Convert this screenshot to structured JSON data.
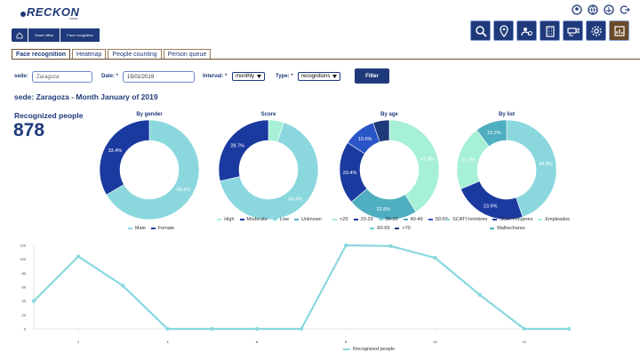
{
  "app": {
    "logo_text": "RECKON",
    "logo_sub": "PRIME"
  },
  "breadcrumb": [
    "Smart office",
    "Face recognition"
  ],
  "top_icons": [
    "profile-icon",
    "globe-icon",
    "scale-icon",
    "logout-icon"
  ],
  "nav_tiles": [
    "search-icon",
    "location-icon",
    "people-gear-icon",
    "building-icon",
    "camera-icon",
    "settings-icon",
    "dashboard-icon"
  ],
  "tabs": [
    {
      "label": "Face recognition",
      "active": true
    },
    {
      "label": "Heatmap",
      "active": false
    },
    {
      "label": "People counting",
      "active": false
    },
    {
      "label": "Person queue",
      "active": false
    }
  ],
  "filters": {
    "sede_label": "sede:",
    "sede_placeholder": "Zaragoza",
    "date_label": "Date: *",
    "date_value": "15/01/2019",
    "interval_label": "Interval: *",
    "interval_value": "monthly",
    "type_label": "Type: *",
    "type_value": "recognitions",
    "filter_button": "Filter"
  },
  "heading": "sede: Zaragoza - Month January of 2019",
  "recognized": {
    "label": "Recognized people",
    "count": "878"
  },
  "colors": {
    "dark": "#1a3aa0",
    "light": "#8ad8de",
    "mint": "#a6f0d6",
    "mid": "#4faec0",
    "navy": "#1f3a7a"
  },
  "chart_data": [
    {
      "type": "pie",
      "title": "By gender",
      "slices": [
        {
          "name": "Male",
          "value": 66.6,
          "label": "66.6%",
          "color": "#8ad8de"
        },
        {
          "name": "Female",
          "value": 33.4,
          "label": "33.4%",
          "color": "#1a3aa0"
        }
      ]
    },
    {
      "type": "pie",
      "title": "Score",
      "slices": [
        {
          "name": "High",
          "value": 5.0,
          "label": "",
          "color": "#a6f0d6"
        },
        {
          "name": "Moderate",
          "value": 66.4,
          "label": "66.4%",
          "color": "#8ad8de"
        },
        {
          "name": "Low",
          "value": 28.7,
          "label": "28.7%",
          "color": "#1a3aa0"
        }
      ],
      "legend": [
        {
          "name": "High",
          "color": "#a6f0d6"
        },
        {
          "name": "Moderate",
          "color": "#1a3aa0"
        },
        {
          "name": "Low",
          "color": "#8ad8de"
        },
        {
          "name": "Unknown",
          "color": "#4faec0"
        }
      ]
    },
    {
      "type": "pie",
      "title": "By age",
      "slices": [
        {
          "name": "<20",
          "value": 41.0,
          "label": "41.0%",
          "color": "#a6f0d6"
        },
        {
          "name": "20-29",
          "value": 22.8,
          "label": "22.8%",
          "color": "#4faec0"
        },
        {
          "name": "30-39",
          "value": 20.4,
          "label": "20.4%",
          "color": "#1a3aa0"
        },
        {
          "name": "40-49",
          "value": 10.5,
          "label": "10.5%",
          "color": "#2a55c8"
        },
        {
          "name": "50-59",
          "value": 5.3,
          "label": "",
          "color": "#1f3a7a"
        }
      ],
      "legend": [
        {
          "name": "<20",
          "color": "#a6f0d6"
        },
        {
          "name": "20-29",
          "color": "#1a3aa0"
        },
        {
          "name": "30-39",
          "color": "#8ad8de"
        },
        {
          "name": "40-49",
          "color": "#4faec0"
        },
        {
          "name": "50-59",
          "color": "#2a55c8"
        },
        {
          "name": "60-69",
          "color": "#6ad0c4"
        },
        {
          "name": ">70",
          "color": "#1f3a7a"
        }
      ]
    },
    {
      "type": "pie",
      "title": "By list",
      "slices": [
        {
          "name": "SCATI-hombres",
          "value": 44.8,
          "label": "44.8%",
          "color": "#8ad8de"
        },
        {
          "name": "SCATI-mujeres",
          "value": 23.9,
          "label": "23.9%",
          "color": "#1a3aa0"
        },
        {
          "name": "Empleados",
          "value": 21.0,
          "label": "21.0%",
          "color": "#a6f0d6"
        },
        {
          "name": "Malhechores",
          "value": 10.3,
          "label": "10.3%",
          "color": "#4faec0"
        }
      ],
      "legend": [
        {
          "name": "SCATI-hombres",
          "color": "#8ad8de"
        },
        {
          "name": "SCATI-mujeres",
          "color": "#1a3aa0"
        },
        {
          "name": "Empleados",
          "color": "#a6f0d6"
        },
        {
          "name": "Malhechores",
          "color": "#4faec0"
        }
      ]
    },
    {
      "type": "line",
      "x": [
        1,
        2,
        3,
        4,
        5,
        6,
        7,
        8,
        9,
        10,
        11,
        12,
        13
      ],
      "y": [
        40,
        104,
        62,
        0,
        0,
        0,
        0,
        120,
        119,
        102,
        49,
        0,
        0
      ],
      "xticks": [
        2,
        4,
        6,
        8,
        10,
        12
      ],
      "yticks": [
        0,
        20,
        40,
        60,
        80,
        100,
        120
      ],
      "ylim": [
        0,
        120
      ],
      "xlim": [
        1,
        13
      ],
      "series_name": "Recognized people",
      "color": "#8ad8de"
    }
  ]
}
